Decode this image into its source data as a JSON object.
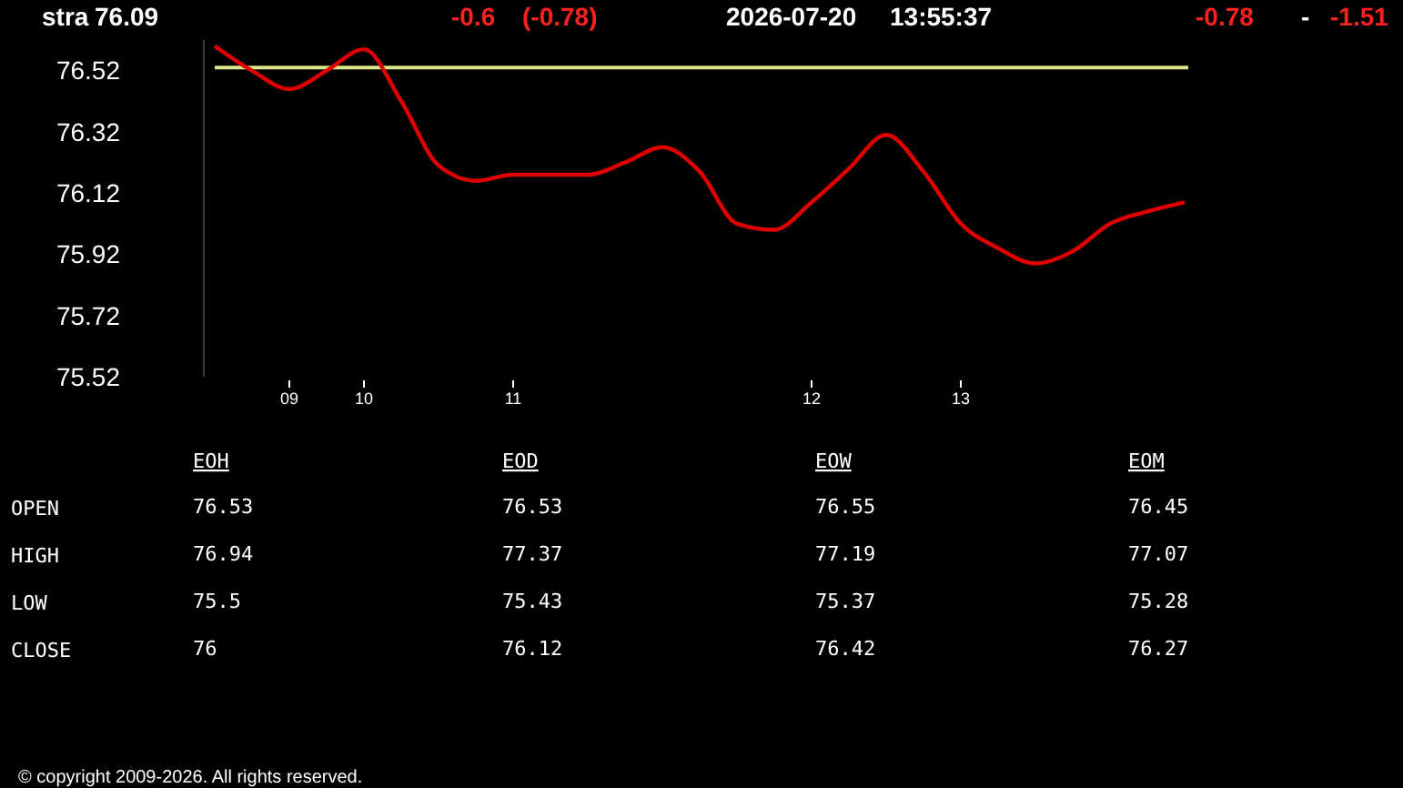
{
  "chart_data": [
    {
      "type": "line",
      "title": "stra",
      "annotations": [
        "76.09",
        "-0.6",
        "(-0.78)",
        "2026-07-20",
        "13:55:37",
        "-0.78",
        "-",
        "-1.51",
        "© copyright 2009-2026. All rights reserved."
      ],
      "categories": [
        null,
        null,
        "09",
        null,
        "10",
        null,
        null,
        null,
        "11",
        null,
        null,
        null,
        null,
        null,
        null,
        null,
        "12",
        null,
        null,
        null,
        "13",
        null,
        null,
        null,
        null,
        null,
        null
      ],
      "series": [
        {
          "color": "#e00000",
          "values": [
            76.6,
            76.52,
            76.46,
            76.52,
            76.59,
            76.42,
            76.21,
            76.16,
            76.18,
            76.18,
            76.18,
            76.22,
            76.27,
            76.19,
            76.02,
            76.0,
            76.09,
            76.2,
            76.31,
            76.19,
            76.02,
            75.94,
            75.89,
            75.93,
            76.02,
            76.06,
            76.09
          ]
        }
      ],
      "ylim": [
        75.52,
        76.62
      ],
      "yticks": [
        75.52,
        75.72,
        75.92,
        76.12,
        76.32,
        76.52
      ],
      "ref_lines": [
        {
          "axis": "y",
          "value": 76.53,
          "color": "#dfe58a"
        }
      ],
      "grid": false,
      "line_style": "solid",
      "marker": "none"
    },
    {
      "type": "other",
      "categories": [
        "EOH",
        "EOD",
        "EOW",
        "EOM"
      ],
      "y_categories": [
        "OPEN",
        "HIGH",
        "LOW",
        "CLOSE"
      ],
      "annotations": [
        "76.53",
        "76.53",
        "76.55",
        "76.45",
        "76.94",
        "77.37",
        "77.19",
        "77.07",
        "75.5",
        "75.43",
        "75.37",
        "75.28",
        "76",
        "76.12",
        "76.42",
        "76.27"
      ]
    }
  ]
}
